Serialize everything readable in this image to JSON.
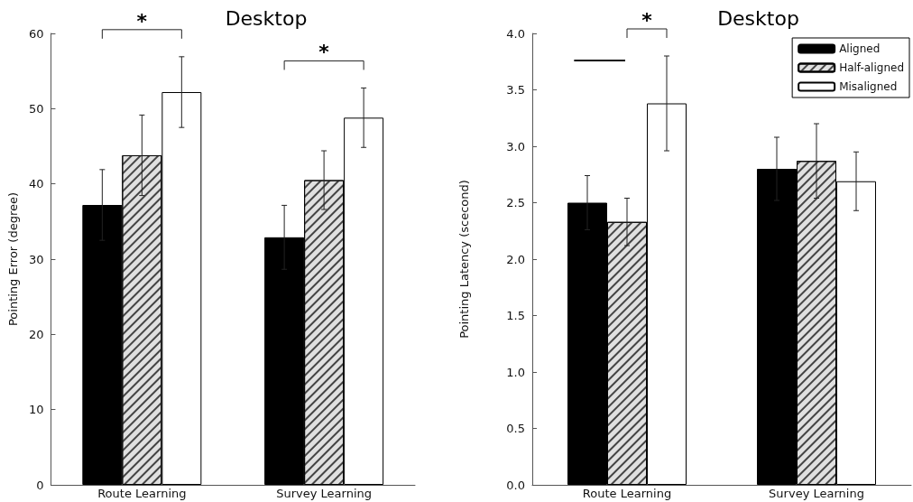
{
  "chart_data": [
    {
      "type": "bar",
      "title": "Desktop",
      "ylabel": "Pointing Error (degree)",
      "categories": [
        "Route Learning",
        "Survey Learning"
      ],
      "series": [
        {
          "color": "#000000",
          "values": [
            37.2,
            32.9
          ],
          "errors": [
            4.7,
            4.25
          ]
        },
        {
          "color": "#e0e0e0",
          "values": [
            43.8,
            40.5
          ],
          "errors": [
            5.35,
            3.9
          ]
        },
        {
          "color": "#ffffff",
          "values": [
            52.2,
            48.8
          ],
          "errors": [
            4.7,
            3.95
          ]
        }
      ],
      "ylim": [
        0,
        60
      ],
      "yticks": [
        0,
        10,
        20,
        30,
        40,
        50,
        60
      ],
      "grid": false,
      "legend": false,
      "annotations": [
        "*",
        "*"
      ]
    },
    {
      "type": "bar",
      "title": "Desktop",
      "ylabel": "Pointing Latency (scecond)",
      "categories": [
        "Route Learning",
        "Survey Learning"
      ],
      "series": [
        {
          "name": "Aligned",
          "color": "#000000",
          "values": [
            2.5,
            2.8
          ],
          "errors": [
            0.24,
            0.28
          ]
        },
        {
          "name": "Half-aligned",
          "color": "#e0e0e0",
          "values": [
            2.33,
            2.87
          ],
          "errors": [
            0.21,
            0.33
          ]
        },
        {
          "name": "Misaligned",
          "color": "#ffffff",
          "values": [
            3.38,
            2.69
          ],
          "errors": [
            0.42,
            0.26
          ]
        }
      ],
      "ylim": [
        0,
        4
      ],
      "yticks": [
        {
          "value": 0,
          "label": "0.0"
        },
        {
          "value": 0.5,
          "label": "0.5"
        },
        {
          "value": 1,
          "label": "1.0"
        },
        {
          "value": 1.5,
          "label": "1.5"
        },
        {
          "value": 2,
          "label": "2.0"
        },
        {
          "value": 2.5,
          "label": "2.5"
        },
        {
          "value": 3,
          "label": "3.0"
        },
        {
          "value": 3.5,
          "label": "3.5"
        },
        {
          "value": 4,
          "label": "4.0"
        }
      ],
      "grid": false,
      "legend": "top right",
      "annotations": [
        "*"
      ]
    }
  ]
}
